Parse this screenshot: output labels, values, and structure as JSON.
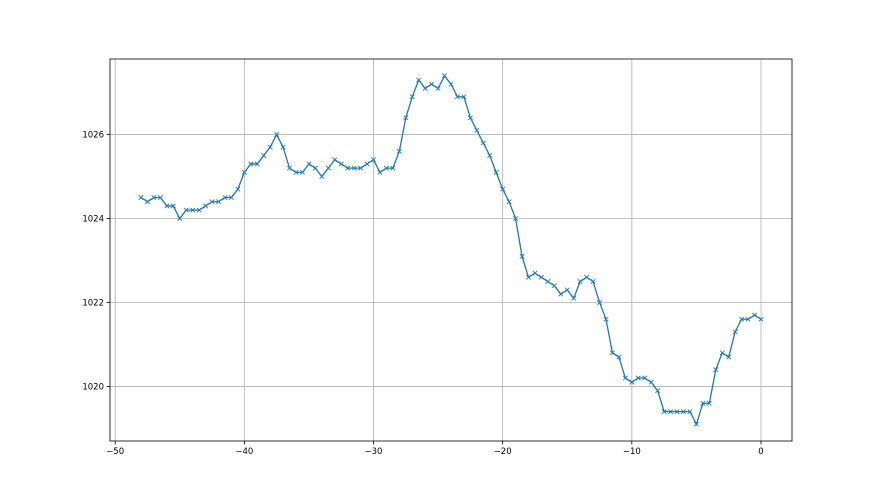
{
  "chart_data": {
    "type": "line",
    "title": "",
    "xlabel": "",
    "ylabel": "",
    "xlim": [
      -50.4,
      2.4
    ],
    "ylim": [
      1018.7,
      1027.8
    ],
    "xticks": [
      -50,
      -40,
      -30,
      -20,
      -10,
      0
    ],
    "yticks": [
      1020,
      1022,
      1024,
      1026
    ],
    "grid": true,
    "marker": "x",
    "color": "#1f77b4",
    "x_start": -48,
    "x_step": 0.5,
    "series": [
      {
        "values": [
          1024.5,
          1024.4,
          1024.5,
          1024.5,
          1024.3,
          1024.3,
          1024.0,
          1024.2,
          1024.2,
          1024.2,
          1024.3,
          1024.4,
          1024.4,
          1024.5,
          1024.5,
          1024.7,
          1025.1,
          1025.3,
          1025.3,
          1025.5,
          1025.7,
          1026.0,
          1025.7,
          1025.2,
          1025.1,
          1025.1,
          1025.3,
          1025.2,
          1025.0,
          1025.2,
          1025.4,
          1025.3,
          1025.2,
          1025.2,
          1025.2,
          1025.3,
          1025.4,
          1025.1,
          1025.2,
          1025.2,
          1025.6,
          1026.4,
          1026.9,
          1027.3,
          1027.1,
          1027.2,
          1027.1,
          1027.4,
          1027.2,
          1026.9,
          1026.9,
          1026.4,
          1026.1,
          1025.8,
          1025.5,
          1025.1,
          1024.7,
          1024.4,
          1024.0,
          1023.1,
          1022.6,
          1022.7,
          1022.6,
          1022.5,
          1022.4,
          1022.2,
          1022.3,
          1022.1,
          1022.5,
          1022.6,
          1022.5,
          1022.0,
          1021.6,
          1020.8,
          1020.7,
          1020.2,
          1020.1,
          1020.2,
          1020.2,
          1020.1,
          1019.9,
          1019.4,
          1019.4,
          1019.4,
          1019.4,
          1019.4,
          1019.1,
          1019.6,
          1019.6,
          1020.4,
          1020.8,
          1020.7,
          1021.3,
          1021.6,
          1021.6,
          1021.7,
          1021.6
        ]
      }
    ]
  }
}
